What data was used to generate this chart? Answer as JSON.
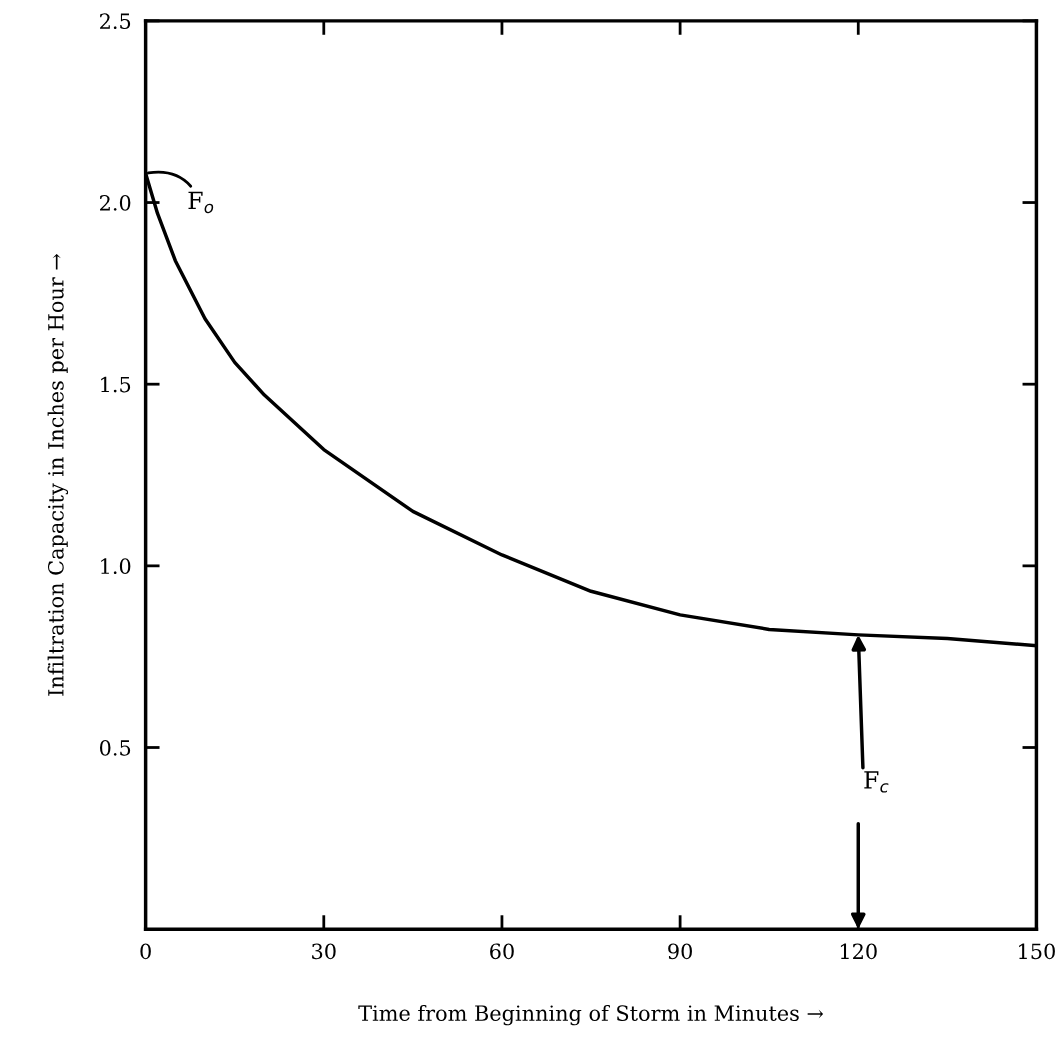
{
  "chart_data": {
    "type": "line",
    "xlabel": "Time from Beginning of Storm in Minutes →",
    "ylabel": "Infiltration Capacity in Inches per Hour →",
    "x": [
      0,
      2,
      5,
      10,
      15,
      20,
      30,
      45,
      60,
      75,
      90,
      105,
      120,
      135,
      150
    ],
    "series": [
      {
        "color": "#000000",
        "values": [
          2.08,
          1.97,
          1.84,
          1.68,
          1.56,
          1.47,
          1.32,
          1.15,
          1.03,
          0.93,
          0.865,
          0.825,
          0.81,
          0.8,
          0.78
        ]
      }
    ],
    "xlim": [
      0,
      150
    ],
    "ylim": [
      0,
      2.5
    ],
    "xticks": [
      0,
      30,
      60,
      90,
      120,
      150
    ],
    "yticks": [
      {
        "value": 0.5,
        "label": "0.5"
      },
      {
        "value": 1.0,
        "label": "1.0"
      },
      {
        "value": 1.5,
        "label": "1.5"
      },
      {
        "value": 2.0,
        "label": "2.0"
      },
      {
        "value": 2.5,
        "label": "2.5"
      }
    ],
    "annotations": [
      {
        "text": "F$_{o}$",
        "x": 0,
        "y": 2.08
      },
      {
        "text": "F$_{c}$",
        "x": 120,
        "y": 0.81
      }
    ],
    "grid": false,
    "marker": "none",
    "line_style": "solid"
  }
}
